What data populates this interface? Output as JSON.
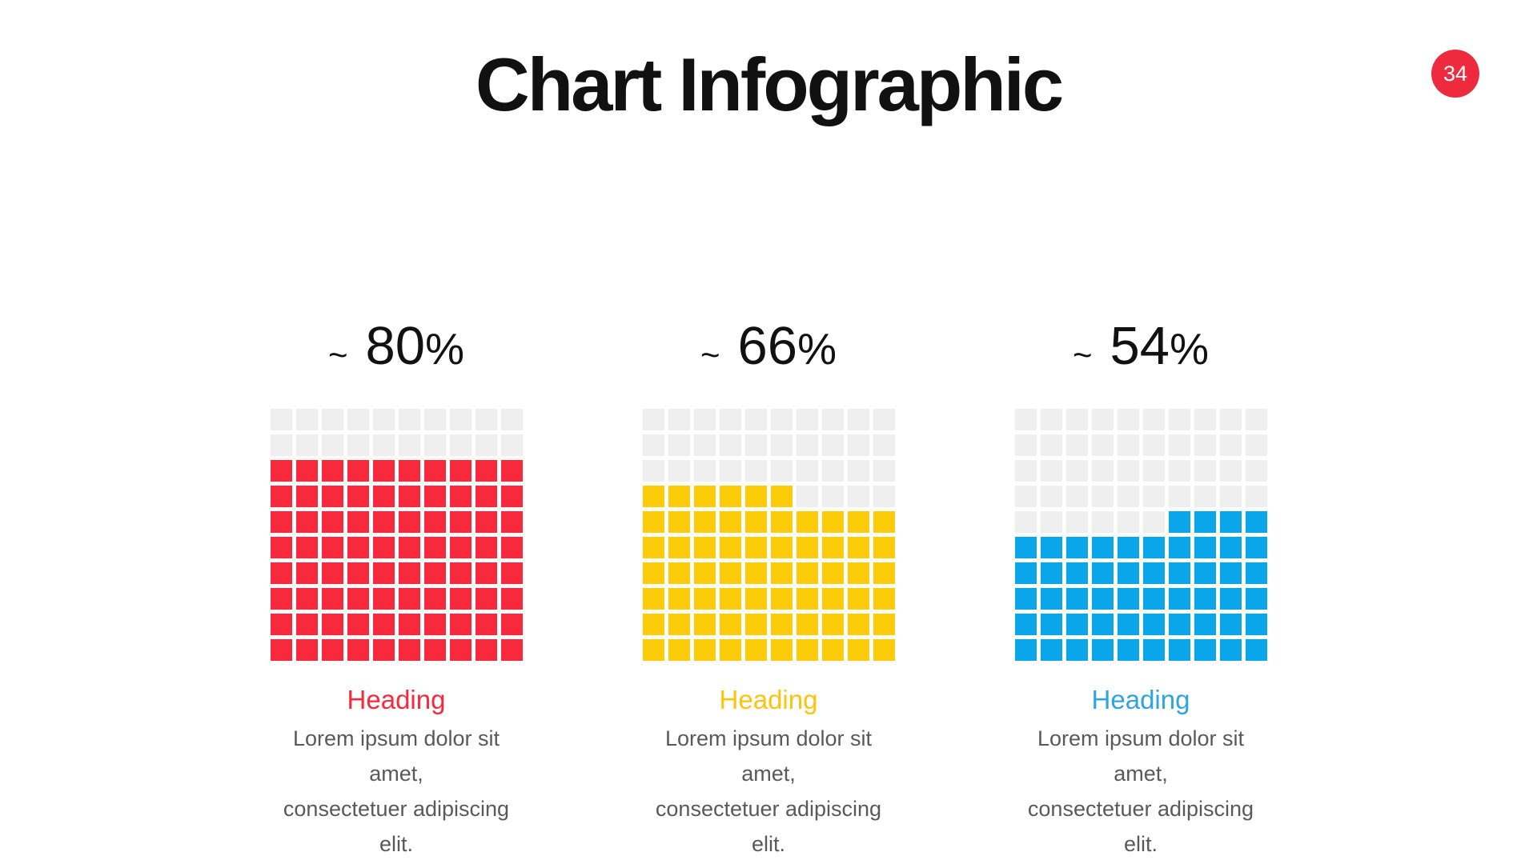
{
  "slide": {
    "title": "Chart Infographic",
    "page_number": "34",
    "background_color": "#FFFFFF",
    "title_color": "#111111",
    "badge_color": "#EE2B3E",
    "body_text_color": "#595959"
  },
  "chart_data": [
    {
      "type": "waffle",
      "title": "Heading",
      "approx_prefix": "~",
      "percent": 80,
      "value_text": "80",
      "percent_sign": "%",
      "grid": {
        "rows": 10,
        "cols": 10,
        "total_cells": 100,
        "filled_cells": 80,
        "fill_from": "bottom",
        "partial_row_alignment": "left"
      },
      "fill_color": "#F7293B",
      "empty_color": "#EFEFEF",
      "heading_color": "#F7293B",
      "description": [
        "Lorem ipsum dolor sit amet,",
        "consectetuer adipiscing elit."
      ]
    },
    {
      "type": "waffle",
      "title": "Heading",
      "approx_prefix": "~",
      "percent": 66,
      "value_text": "66",
      "percent_sign": "%",
      "grid": {
        "rows": 10,
        "cols": 10,
        "total_cells": 100,
        "filled_cells": 66,
        "fill_from": "bottom",
        "partial_row_alignment": "left"
      },
      "fill_color": "#FCCC08",
      "empty_color": "#EFEFEF",
      "heading_color": "#FCC40B",
      "description": [
        "Lorem ipsum dolor sit amet,",
        "consectetuer adipiscing elit."
      ]
    },
    {
      "type": "waffle",
      "title": "Heading",
      "approx_prefix": "~",
      "percent": 54,
      "value_text": "54",
      "percent_sign": "%",
      "grid": {
        "rows": 10,
        "cols": 10,
        "total_cells": 100,
        "filled_cells": 54,
        "fill_from": "bottom",
        "partial_row_alignment": "right"
      },
      "fill_color": "#0AA6EB",
      "empty_color": "#EFEFEF",
      "heading_color": "#2CA5E0",
      "description": [
        "Lorem ipsum dolor sit amet,",
        "consectetuer adipiscing elit."
      ]
    }
  ]
}
